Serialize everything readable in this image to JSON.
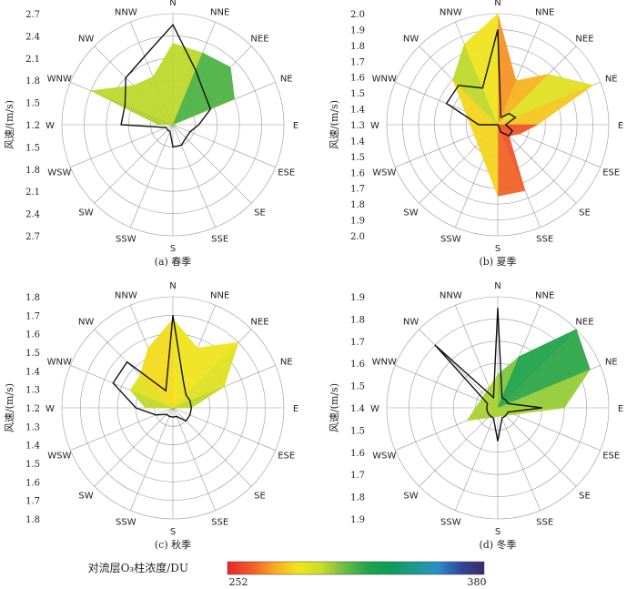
{
  "directions": [
    "N",
    "NNE",
    "NEE",
    "NE",
    "E",
    "ESE",
    "SE",
    "SSE",
    "S",
    "SSW",
    "SW",
    "WSW",
    "W",
    "WNW",
    "NW",
    "NNW"
  ],
  "ylabel": "风速/(m/s)",
  "colorbar": {
    "title": "对流层O₃柱浓度/DU",
    "min_label": "252",
    "max_label": "380",
    "min": 252,
    "max": 380,
    "stops": [
      "#e8262c",
      "#f05a28",
      "#f7a823",
      "#f2e41c",
      "#c9dc2a",
      "#6cbe45",
      "#22a34a",
      "#0f9a59",
      "#1b9a8c",
      "#2a8fc8",
      "#35469b",
      "#3a2a6b"
    ]
  },
  "chart_data": [
    {
      "type": "radar",
      "caption": "(a) 春季",
      "radial_ticks": [
        "2.7",
        "2.4",
        "2.1",
        "1.8",
        "1.5",
        "1.2",
        "1.5",
        "1.8",
        "2.1",
        "2.4",
        "2.7"
      ],
      "rmin": 1.2,
      "rmax": 2.7,
      "wind_speed": [
        2.55,
        2.0,
        1.8,
        1.75,
        1.55,
        1.45,
        1.45,
        1.5,
        1.5,
        1.3,
        1.3,
        1.3,
        1.9,
        1.9,
        2.1,
        2.2
      ],
      "o3_surface": [
        {
          "dir": "NNE",
          "r": 2.25,
          "value": 300
        },
        {
          "dir": "NEE",
          "r": 2.3,
          "value": 330
        },
        {
          "dir": "NE",
          "r": 2.1,
          "value": 300
        },
        {
          "dir": "E",
          "r": 1.2,
          "value": 305
        },
        {
          "dir": "W",
          "r": 1.4,
          "value": 305
        },
        {
          "dir": "WNW",
          "r": 2.4,
          "value": 300
        },
        {
          "dir": "NW",
          "r": 1.95,
          "value": 300
        },
        {
          "dir": "NNW",
          "r": 1.9,
          "value": 300
        },
        {
          "dir": "N",
          "r": 2.3,
          "value": 300
        }
      ]
    },
    {
      "type": "radar",
      "caption": "(b) 夏季",
      "radial_ticks": [
        "2.0",
        "1.9",
        "1.8",
        "1.7",
        "1.6",
        "1.5",
        "1.4",
        "1.3",
        "1.4",
        "1.5",
        "1.6",
        "1.7",
        "1.8",
        "1.9",
        "2.0"
      ],
      "rmin": 1.3,
      "rmax": 2.0,
      "wind_speed": [
        1.9,
        1.35,
        1.4,
        1.42,
        1.35,
        1.4,
        1.4,
        1.35,
        1.3,
        1.3,
        1.3,
        1.3,
        1.42,
        1.65,
        1.65,
        1.55
      ],
      "o3_surface": [
        {
          "dir": "N",
          "r": 2.0,
          "value": 275
        },
        {
          "dir": "NNE",
          "r": 1.6,
          "value": 270
        },
        {
          "dir": "NEE",
          "r": 1.75,
          "value": 285
        },
        {
          "dir": "NE",
          "r": 1.95,
          "value": 300
        },
        {
          "dir": "E",
          "r": 1.55,
          "value": 262
        },
        {
          "dir": "ESE",
          "r": 1.45,
          "value": 262
        },
        {
          "dir": "SE",
          "r": 1.4,
          "value": 262
        },
        {
          "dir": "SSE",
          "r": 1.75,
          "value": 262
        },
        {
          "dir": "S",
          "r": 1.75,
          "value": 268
        },
        {
          "dir": "NW",
          "r": 1.7,
          "value": 300
        },
        {
          "dir": "NNW",
          "r": 1.85,
          "value": 300
        }
      ]
    },
    {
      "type": "radar",
      "caption": "(c) 秋季",
      "radial_ticks": [
        "1.8",
        "1.7",
        "1.6",
        "1.5",
        "1.4",
        "1.3",
        "1.2",
        "1.3",
        "1.4",
        "1.5",
        "1.6",
        "1.7",
        "1.8"
      ],
      "rmin": 1.2,
      "rmax": 1.8,
      "wind_speed": [
        1.7,
        1.35,
        1.3,
        1.3,
        1.3,
        1.3,
        1.3,
        1.25,
        1.25,
        1.25,
        1.25,
        1.3,
        1.4,
        1.55,
        1.55,
        1.3
      ],
      "o3_surface": [
        {
          "dir": "N",
          "r": 1.68,
          "value": 285
        },
        {
          "dir": "NNE",
          "r": 1.55,
          "value": 290
        },
        {
          "dir": "NEE",
          "r": 1.7,
          "value": 285
        },
        {
          "dir": "NE",
          "r": 1.5,
          "value": 300
        },
        {
          "dir": "E",
          "r": 1.3,
          "value": 300
        },
        {
          "dir": "W",
          "r": 1.35,
          "value": 300
        },
        {
          "dir": "WNW",
          "r": 1.45,
          "value": 300
        },
        {
          "dir": "NW",
          "r": 1.45,
          "value": 285
        },
        {
          "dir": "NNW",
          "r": 1.55,
          "value": 285
        }
      ]
    },
    {
      "type": "radar",
      "caption": "(d) 冬季",
      "radial_ticks": [
        "1.9",
        "1.8",
        "1.7",
        "1.6",
        "1.5",
        "1.4",
        "1.5",
        "1.6",
        "1.7",
        "1.8",
        "1.9"
      ],
      "rmin": 1.4,
      "rmax": 1.9,
      "wind_speed": [
        1.85,
        1.45,
        1.45,
        1.45,
        1.6,
        1.45,
        1.45,
        1.45,
        1.55,
        1.45,
        1.45,
        1.45,
        1.45,
        1.45,
        1.8,
        1.45
      ],
      "o3_surface": [
        {
          "dir": "N",
          "r": 1.55,
          "value": 305
        },
        {
          "dir": "NNE",
          "r": 1.65,
          "value": 310
        },
        {
          "dir": "NEE",
          "r": 1.9,
          "value": 335
        },
        {
          "dir": "NE",
          "r": 1.85,
          "value": 305
        },
        {
          "dir": "E",
          "r": 1.7,
          "value": 305
        },
        {
          "dir": "WSW",
          "r": 1.55,
          "value": 300
        }
      ]
    }
  ]
}
